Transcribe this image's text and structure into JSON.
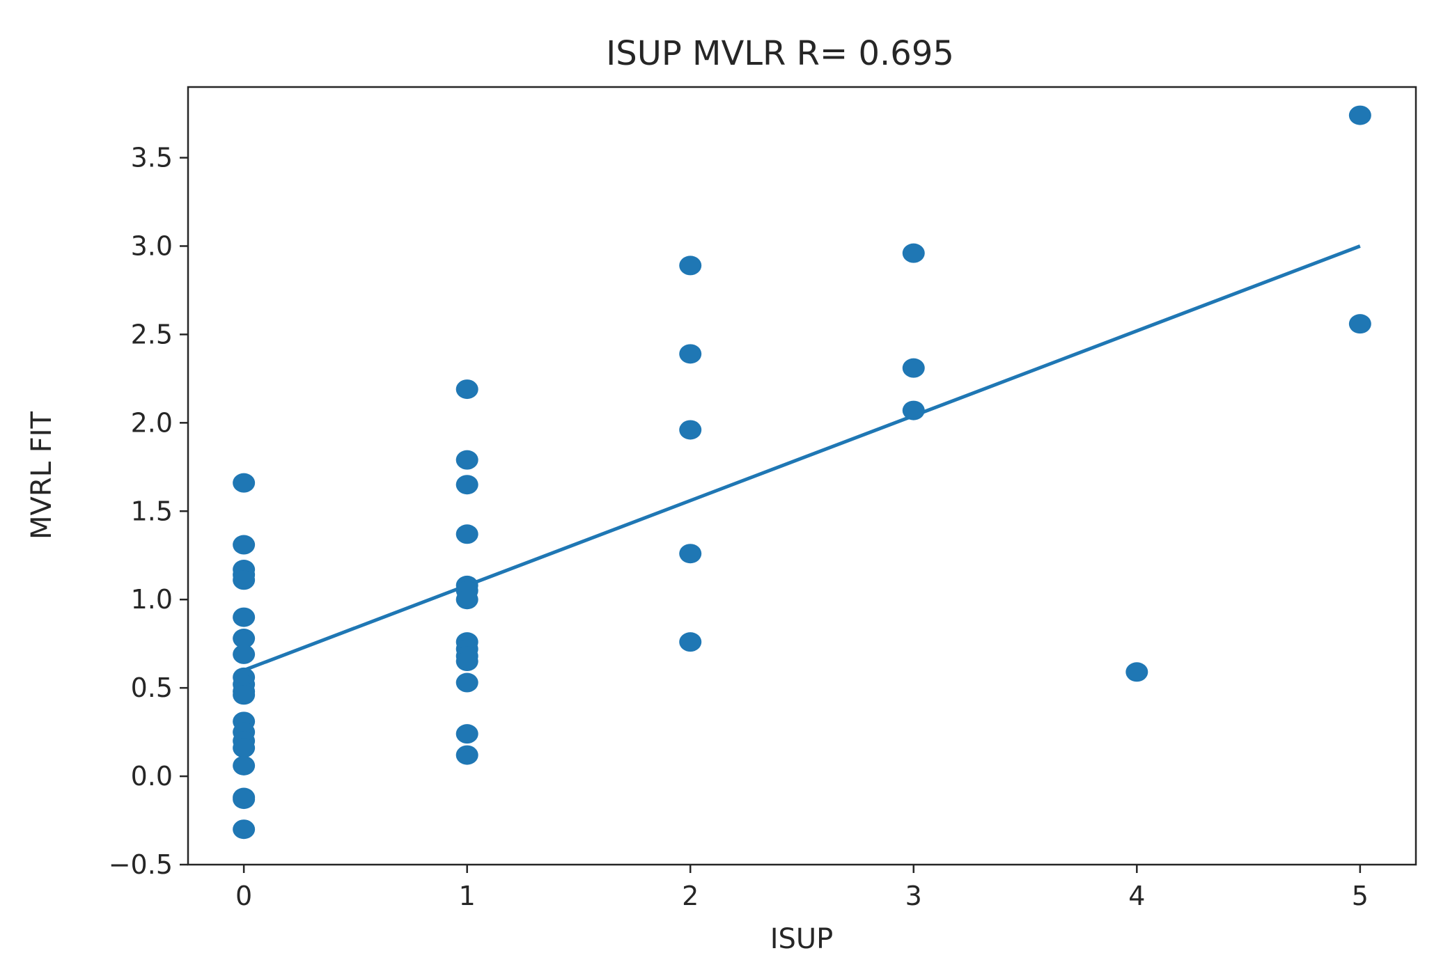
{
  "chart_data": {
    "type": "scatter",
    "title": "ISUP MVLR  R= 0.695",
    "xlabel": "ISUP",
    "ylabel": "MVRL FIT",
    "xlim": [
      -0.25,
      5.25
    ],
    "ylim": [
      -0.5,
      3.9
    ],
    "xticks": [
      0,
      1,
      2,
      3,
      4,
      5
    ],
    "xtick_labels": [
      "0",
      "1",
      "2",
      "3",
      "4",
      "5"
    ],
    "yticks": [
      -0.5,
      0.0,
      0.5,
      1.0,
      1.5,
      2.0,
      2.5,
      3.0,
      3.5
    ],
    "ytick_labels": [
      "−0.5",
      "0.0",
      "0.5",
      "1.0",
      "1.5",
      "2.0",
      "2.5",
      "3.0",
      "3.5"
    ],
    "grid": false,
    "color": "#1f77b4",
    "points": [
      {
        "x": 0,
        "y": 1.66
      },
      {
        "x": 0,
        "y": 1.31
      },
      {
        "x": 0,
        "y": 1.17
      },
      {
        "x": 0,
        "y": 1.14
      },
      {
        "x": 0,
        "y": 1.11
      },
      {
        "x": 0,
        "y": 0.9
      },
      {
        "x": 0,
        "y": 0.78
      },
      {
        "x": 0,
        "y": 0.69
      },
      {
        "x": 0,
        "y": 0.56
      },
      {
        "x": 0,
        "y": 0.52
      },
      {
        "x": 0,
        "y": 0.48
      },
      {
        "x": 0,
        "y": 0.46
      },
      {
        "x": 0,
        "y": 0.31
      },
      {
        "x": 0,
        "y": 0.25
      },
      {
        "x": 0,
        "y": 0.2
      },
      {
        "x": 0,
        "y": 0.16
      },
      {
        "x": 0,
        "y": 0.06
      },
      {
        "x": 0,
        "y": -0.12
      },
      {
        "x": 0,
        "y": -0.13
      },
      {
        "x": 0,
        "y": -0.3
      },
      {
        "x": 1,
        "y": 2.19
      },
      {
        "x": 1,
        "y": 1.79
      },
      {
        "x": 1,
        "y": 1.65
      },
      {
        "x": 1,
        "y": 1.37
      },
      {
        "x": 1,
        "y": 1.08
      },
      {
        "x": 1,
        "y": 1.05
      },
      {
        "x": 1,
        "y": 1.0
      },
      {
        "x": 1,
        "y": 0.76
      },
      {
        "x": 1,
        "y": 0.72
      },
      {
        "x": 1,
        "y": 0.68
      },
      {
        "x": 1,
        "y": 0.65
      },
      {
        "x": 1,
        "y": 0.53
      },
      {
        "x": 1,
        "y": 0.24
      },
      {
        "x": 1,
        "y": 0.12
      },
      {
        "x": 2,
        "y": 2.89
      },
      {
        "x": 2,
        "y": 2.39
      },
      {
        "x": 2,
        "y": 1.96
      },
      {
        "x": 2,
        "y": 1.26
      },
      {
        "x": 2,
        "y": 0.76
      },
      {
        "x": 3,
        "y": 2.96
      },
      {
        "x": 3,
        "y": 2.31
      },
      {
        "x": 3,
        "y": 2.07
      },
      {
        "x": 4,
        "y": 0.59
      },
      {
        "x": 5,
        "y": 3.74
      },
      {
        "x": 5,
        "y": 2.56
      }
    ],
    "fit_line": {
      "x": [
        0,
        5
      ],
      "y": [
        0.6,
        3.0
      ]
    }
  }
}
